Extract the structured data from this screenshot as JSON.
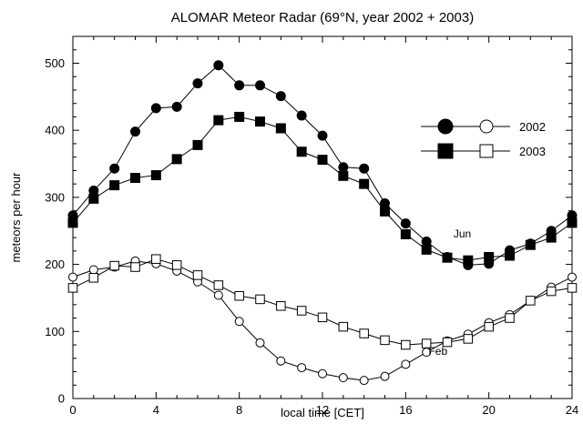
{
  "chart_data": {
    "type": "line",
    "title": "ALOMAR Meteor Radar (69°N, year 2002 + 2003)",
    "xlabel": "local time [CET]",
    "ylabel": "meteors per hour",
    "xlim": [
      0,
      24
    ],
    "ylim": [
      0,
      540
    ],
    "xticks": [
      0,
      4,
      8,
      12,
      16,
      20,
      24
    ],
    "yticks": [
      0,
      100,
      200,
      300,
      400,
      500
    ],
    "legend": {
      "placement": "top-right",
      "entries": [
        {
          "label": "2002",
          "markers": [
            "filled-circle",
            "open-circle"
          ]
        },
        {
          "label": "2003",
          "markers": [
            "filled-square",
            "open-square"
          ]
        }
      ]
    },
    "annotations": [
      {
        "text": "Jun",
        "x": 18.3,
        "y": 240
      },
      {
        "text": "Feb",
        "x": 17.1,
        "y": 65
      }
    ],
    "x": [
      0,
      1,
      2,
      3,
      4,
      5,
      6,
      7,
      8,
      9,
      10,
      11,
      12,
      13,
      14,
      15,
      16,
      17,
      18,
      19,
      20,
      21,
      22,
      23,
      24
    ],
    "series": [
      {
        "name": "Jun 2002",
        "marker": "circle",
        "filled": true,
        "values": [
          273,
          310,
          343,
          398,
          433,
          435,
          470,
          497,
          467,
          467,
          451,
          422,
          392,
          345,
          343,
          291,
          261,
          234,
          211,
          199,
          201,
          221,
          231,
          250,
          273
        ]
      },
      {
        "name": "Jun 2003",
        "marker": "square",
        "filled": true,
        "values": [
          262,
          298,
          318,
          329,
          333,
          357,
          378,
          415,
          420,
          413,
          403,
          368,
          356,
          332,
          320,
          279,
          245,
          222,
          210,
          206,
          211,
          213,
          229,
          240,
          262
        ]
      },
      {
        "name": "Feb 2002",
        "marker": "circle",
        "filled": false,
        "values": [
          181,
          192,
          196,
          205,
          201,
          190,
          174,
          154,
          115,
          83,
          56,
          46,
          37,
          31,
          27,
          33,
          51,
          69,
          86,
          96,
          113,
          125,
          146,
          166,
          181
        ]
      },
      {
        "name": "Feb 2003",
        "marker": "square",
        "filled": false,
        "values": [
          165,
          180,
          198,
          196,
          208,
          199,
          184,
          169,
          153,
          148,
          138,
          131,
          121,
          107,
          97,
          87,
          80,
          82,
          84,
          89,
          107,
          120,
          146,
          160,
          165
        ]
      }
    ]
  }
}
